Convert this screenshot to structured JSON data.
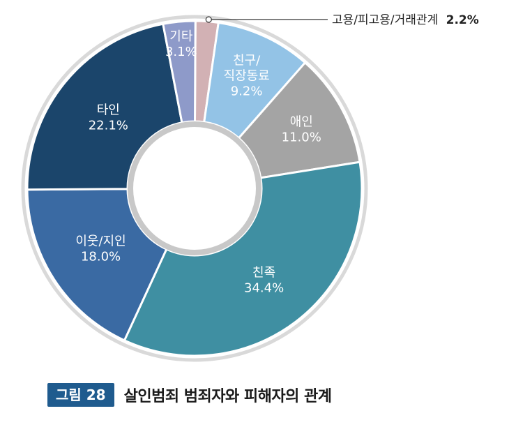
{
  "chart_data": {
    "type": "pie",
    "title": "살인범죄 범죄자와 피해자의 관계",
    "figure_label": "그림 28",
    "slices": [
      {
        "name": "고용/피고용/거래관계",
        "value": 2.2,
        "label": "2.2%",
        "color": "#d2b1b4"
      },
      {
        "name": "친구/ 직장동료",
        "value": 9.2,
        "label": "9.2%",
        "color": "#93c3e6"
      },
      {
        "name": "애인",
        "value": 11.0,
        "label": "11.0%",
        "color": "#a4a4a4"
      },
      {
        "name": "친족",
        "value": 34.4,
        "label": "34.4%",
        "color": "#3f8fa2"
      },
      {
        "name": "이웃/지인",
        "value": 18.0,
        "label": "18.0%",
        "color": "#3a6aa3"
      },
      {
        "name": "타인",
        "value": 22.1,
        "label": "22.1%",
        "color": "#1b456b"
      },
      {
        "name": "기타",
        "value": 3.1,
        "label": "3.1%",
        "color": "#8e9ac9"
      }
    ],
    "slice_label_lines": [
      [],
      [
        "친구/",
        "직장동료",
        "9.2%"
      ],
      [
        "애인",
        "11.0%"
      ],
      [
        "친족",
        "34.4%"
      ],
      [
        "이웃/지인",
        "18.0%"
      ],
      [
        "타인",
        "22.1%"
      ],
      [
        "기타",
        "3.1%"
      ]
    ],
    "callout": {
      "name": "고용/피고용/거래관계",
      "value_label": "2.2%"
    },
    "outer_ring_color": "#d9d9d9",
    "inner_ring_color": "#c8c8c8"
  },
  "caption": {
    "badge": "그림 28",
    "title": "살인범죄 범죄자와 피해자의 관계"
  }
}
